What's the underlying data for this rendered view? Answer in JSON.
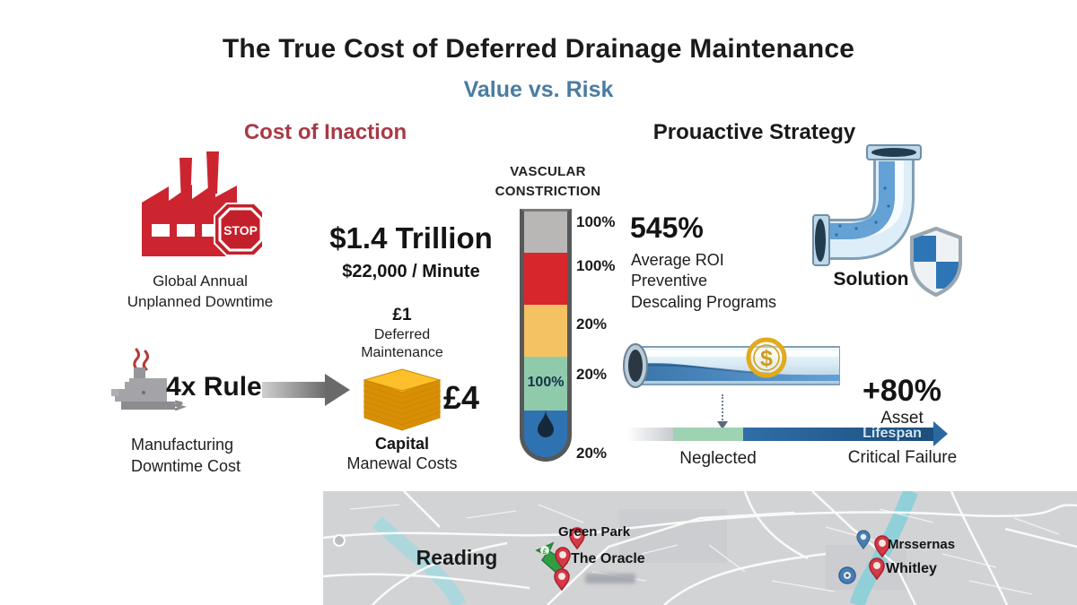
{
  "title": "The True Cost of Deferred Drainage Maintenance",
  "subtitle": "Value vs. Risk",
  "cost_of_inaction": {
    "header": "Cost of Inaction",
    "downtime": {
      "value": "$1.4 Trillion",
      "rate": "$22,000 / Minute",
      "caption": [
        "Global Annual",
        "Unplanned Downtime"
      ],
      "stop_sign": "STOP"
    },
    "four_x_rule": {
      "value": "4x Rule",
      "caption": [
        "Manufacturing",
        "Downtime Cost"
      ]
    },
    "deferred_ratio": {
      "small_value": "£1",
      "small_caption": [
        "Deferred",
        "Maintenance"
      ],
      "big_value": "£4",
      "big_caption": [
        "Capital",
        "Manewal Costs"
      ]
    }
  },
  "gauge": {
    "title": [
      "VASCULAR",
      "CONSTRICTION"
    ],
    "side_labels": [
      "100%",
      "100%",
      "20%",
      "20%",
      "20%"
    ],
    "inner_label": "100%",
    "segments": [
      {
        "name": "gray",
        "color": "#b9b6b6",
        "height": 46
      },
      {
        "name": "red",
        "color": "#d8262d",
        "height": 58
      },
      {
        "name": "amber",
        "color": "#f4c263",
        "height": 58
      },
      {
        "name": "teal",
        "color": "#8fcbab",
        "height": 60
      },
      {
        "name": "blue",
        "color": "#2f72b2",
        "height": 0
      }
    ]
  },
  "proactive_strategy": {
    "header": "Prouactive Strategy",
    "roi": {
      "value": "545%",
      "caption": [
        "Average ROI",
        "Preventive",
        "Descaling Programs"
      ]
    },
    "solution_label": "Solution",
    "lifespan": {
      "value": "+80%",
      "caption": "Asset",
      "arrow_label": "Lifespan",
      "start_label": "Neglected",
      "end_label": "Critical Failure",
      "coin_symbol": "$"
    }
  },
  "map": {
    "city": "Reading",
    "places": [
      "Green Park",
      "The Oracle",
      "Mrssernas",
      "Whitley"
    ]
  },
  "colors": {
    "accent_red": "#a93946",
    "subtitle_blue": "#4a7ca0",
    "factory_red": "#cc2530",
    "coin_gold": "#f0ad1c",
    "pipe_blue": "#5b9bd5",
    "timeline_green": "#9fd2b3",
    "timeline_blue": "#2a68a2"
  }
}
